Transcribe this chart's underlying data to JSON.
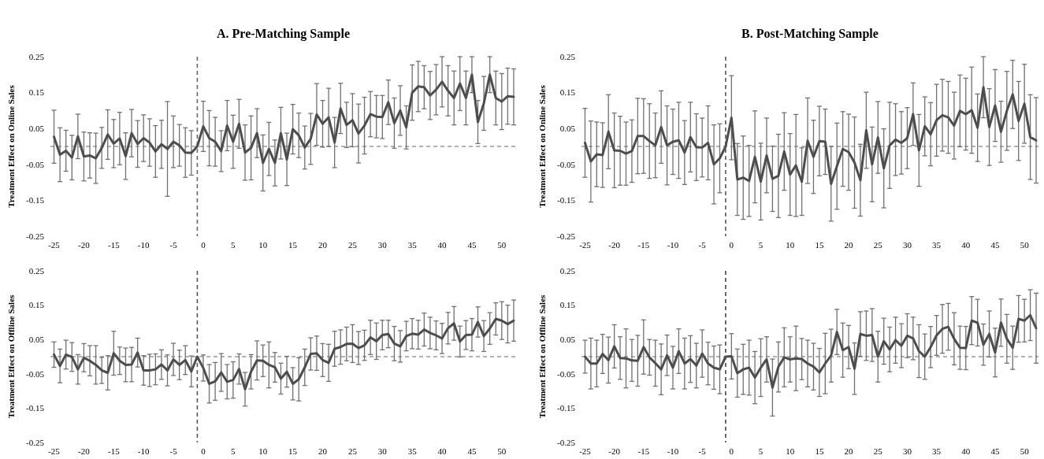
{
  "chart_data": [
    {
      "type": "line",
      "title": "A. Pre-Matching Sample",
      "ylabel": "Treatment Effect on Online Sales",
      "xlim": [
        -25.6,
        52.4
      ],
      "xticks": [
        -25,
        -20,
        -15,
        -10,
        -5,
        0,
        5,
        10,
        15,
        20,
        25,
        30,
        35,
        40,
        45,
        50
      ],
      "ylim": [
        -0.25,
        0.25
      ],
      "yticks": [
        -0.25,
        -0.15,
        -0.05,
        0.05,
        0.15,
        0.25
      ],
      "x": [
        -25,
        -24,
        -23,
        -22,
        -21,
        -20,
        -19,
        -18,
        -17,
        -16,
        -15,
        -14,
        -13,
        -12,
        -11,
        -10,
        -9,
        -8,
        -7,
        -6,
        -5,
        -4,
        -3,
        -2,
        -1,
        0,
        1,
        2,
        3,
        4,
        5,
        6,
        7,
        8,
        9,
        10,
        11,
        12,
        13,
        14,
        15,
        16,
        17,
        18,
        19,
        20,
        21,
        22,
        23,
        24,
        25,
        26,
        27,
        28,
        29,
        30,
        31,
        32,
        33,
        34,
        35,
        36,
        37,
        38,
        39,
        40,
        41,
        42,
        43,
        44,
        45,
        46,
        47,
        48,
        49,
        50,
        51,
        52
      ],
      "ref_lines": [
        {
          "axis": "x",
          "value": -1,
          "line_style": "dashed",
          "color": "#666666"
        },
        {
          "axis": "y",
          "value": 0,
          "line_style": "dashed",
          "color": "#666666"
        }
      ],
      "series": [
        {
          "color": "#4d4d4d",
          "values": [
            0.027,
            -0.023,
            -0.012,
            -0.031,
            0.028,
            -0.028,
            -0.025,
            -0.033,
            -0.004,
            0.033,
            0.008,
            0.022,
            -0.027,
            0.037,
            0.007,
            0.023,
            0.011,
            -0.014,
            0.006,
            -0.007,
            0.013,
            0.003,
            -0.017,
            -0.018,
            0,
            0.056,
            0.023,
            0.013,
            -0.013,
            0.058,
            0.013,
            0.063,
            -0.017,
            -0.004,
            0.037,
            -0.046,
            -0.007,
            -0.046,
            0.037,
            -0.036,
            0.048,
            0.031,
            -0.003,
            0.021,
            0.089,
            0.063,
            0.081,
            0.011,
            0.106,
            0.06,
            0.073,
            0.036,
            0.058,
            0.09,
            0.083,
            0.082,
            0.123,
            0.065,
            0.1,
            0.053,
            0.15,
            0.167,
            0.165,
            0.142,
            0.158,
            0.18,
            0.155,
            0.135,
            0.175,
            0.135,
            0.2,
            0.068,
            0.12,
            0.2,
            0.135,
            0.125,
            0.14,
            0.138
          ],
          "errors": [
            0.074,
            0.075,
            0.057,
            0.062,
            0.062,
            0.068,
            0.063,
            0.07,
            0.057,
            0.069,
            0.067,
            0.073,
            0.065,
            0.066,
            0.065,
            0.065,
            0.066,
            0.072,
            0.067,
            0.132,
            0.072,
            0.058,
            0.069,
            0.062,
            null,
            0.07,
            0.077,
            0.068,
            0.057,
            0.07,
            0.074,
            0.068,
            0.077,
            0.089,
            0.068,
            0.078,
            0.074,
            0.064,
            0.072,
            0.073,
            0.069,
            0.062,
            0.06,
            0.071,
            0.086,
            0.065,
            0.081,
            0.07,
            0.07,
            0.063,
            0.074,
            0.082,
            0.079,
            0.063,
            0.059,
            0.06,
            0.062,
            0.07,
            0.069,
            0.06,
            0.077,
            0.07,
            0.06,
            0.067,
            0.07,
            0.07,
            0.07,
            0.075,
            0.075,
            0.075,
            0.05,
            0.06,
            0.075,
            0.05,
            0.075,
            0.078,
            0.078,
            0.078
          ]
        }
      ]
    },
    {
      "type": "line",
      "title": "B. Post-Matching Sample",
      "ylabel": "Treatment Effect on Online Sales",
      "xlim": [
        -25.6,
        52.4
      ],
      "xticks": [
        -25,
        -20,
        -15,
        -10,
        -5,
        0,
        5,
        10,
        15,
        20,
        25,
        30,
        35,
        40,
        45,
        50
      ],
      "ylim": [
        -0.25,
        0.25
      ],
      "yticks": [
        -0.25,
        -0.15,
        -0.05,
        0.05,
        0.15,
        0.25
      ],
      "x": [
        -25,
        -24,
        -23,
        -22,
        -21,
        -20,
        -19,
        -18,
        -17,
        -16,
        -15,
        -14,
        -13,
        -12,
        -11,
        -10,
        -9,
        -8,
        -7,
        -6,
        -5,
        -4,
        -3,
        -2,
        -1,
        0,
        1,
        2,
        3,
        4,
        5,
        6,
        7,
        8,
        9,
        10,
        11,
        12,
        13,
        14,
        15,
        16,
        17,
        18,
        19,
        20,
        21,
        22,
        23,
        24,
        25,
        26,
        27,
        28,
        29,
        30,
        31,
        32,
        33,
        34,
        35,
        36,
        37,
        38,
        39,
        40,
        41,
        42,
        43,
        44,
        45,
        46,
        47,
        48,
        49,
        50,
        51,
        52
      ],
      "ref_lines": [
        {
          "axis": "x",
          "value": -1,
          "line_style": "dashed",
          "color": "#555555"
        },
        {
          "axis": "y",
          "value": 0,
          "line_style": "dashed",
          "color": "#666666"
        }
      ],
      "series": [
        {
          "color": "#4d4d4d",
          "values": [
            0.01,
            -0.042,
            -0.022,
            -0.024,
            0.041,
            -0.011,
            -0.012,
            -0.02,
            -0.013,
            0.029,
            0.029,
            0.015,
            0.003,
            0.054,
            0.003,
            0.013,
            0.017,
            -0.017,
            0.026,
            -0.002,
            -0.003,
            0.01,
            -0.05,
            -0.033,
            0,
            0.08,
            -0.092,
            -0.087,
            -0.096,
            -0.029,
            -0.098,
            -0.025,
            -0.09,
            -0.082,
            -0.014,
            -0.078,
            -0.053,
            -0.098,
            0.016,
            -0.029,
            0.015,
            0.013,
            -0.104,
            -0.055,
            -0.007,
            -0.016,
            -0.045,
            -0.094,
            0.045,
            -0.05,
            0.025,
            -0.061,
            0.003,
            0.019,
            0.01,
            0.023,
            0.09,
            -0.011,
            0.056,
            0.034,
            0.073,
            0.087,
            0.081,
            0.058,
            0.099,
            0.09,
            0.101,
            0.052,
            0.165,
            0.054,
            0.114,
            0.041,
            0.099,
            0.145,
            0.071,
            0.119,
            0.026,
            0.017
          ],
          "errors": [
            0.096,
            0.113,
            0.09,
            0.09,
            0.103,
            0.104,
            0.096,
            0.088,
            0.087,
            0.105,
            0.104,
            0.104,
            0.09,
            0.101,
            0.11,
            0.091,
            0.106,
            0.089,
            0.097,
            0.093,
            0.082,
            0.103,
            0.11,
            0.096,
            null,
            0.117,
            0.1,
            0.116,
            0.099,
            0.128,
            0.107,
            0.104,
            0.091,
            0.116,
            0.108,
            0.114,
            0.142,
            0.094,
            0.119,
            0.102,
            0.097,
            0.091,
            0.104,
            0.12,
            0.104,
            0.106,
            0.127,
            0.1,
            0.106,
            0.104,
            0.1,
            0.11,
            0.12,
            0.1,
            0.087,
            0.085,
            0.087,
            0.1,
            0.082,
            0.088,
            0.1,
            0.1,
            0.1,
            0.093,
            0.1,
            0.1,
            0.12,
            0.094,
            0.085,
            0.107,
            0.1,
            0.085,
            0.11,
            0.095,
            0.11,
            0.11,
            0.118,
            0.119
          ]
        }
      ]
    },
    {
      "type": "line",
      "ylabel": "Treatment Effect on Offline Sales",
      "xlim": [
        -25.6,
        52.4
      ],
      "xticks": [
        -25,
        -20,
        -15,
        -10,
        -5,
        0,
        5,
        10,
        15,
        20,
        25,
        30,
        35,
        40,
        45,
        50
      ],
      "ylim": [
        -0.25,
        0.25
      ],
      "yticks": [
        -0.25,
        -0.15,
        -0.05,
        0.05,
        0.15,
        0.25
      ],
      "x": [
        -25,
        -24,
        -23,
        -22,
        -21,
        -20,
        -19,
        -18,
        -17,
        -16,
        -15,
        -14,
        -13,
        -12,
        -11,
        -10,
        -9,
        -8,
        -7,
        -6,
        -5,
        -4,
        -3,
        -2,
        -1,
        0,
        1,
        2,
        3,
        4,
        5,
        6,
        7,
        8,
        9,
        10,
        11,
        12,
        13,
        14,
        15,
        16,
        17,
        18,
        19,
        20,
        21,
        22,
        23,
        24,
        25,
        26,
        27,
        28,
        29,
        30,
        31,
        32,
        33,
        34,
        35,
        36,
        37,
        38,
        39,
        40,
        41,
        42,
        43,
        44,
        45,
        46,
        47,
        48,
        49,
        50,
        51,
        52
      ],
      "ref_lines": [
        {
          "axis": "x",
          "value": -1,
          "line_style": "dashed",
          "color": "#555555"
        },
        {
          "axis": "y",
          "value": 0,
          "line_style": "dashed",
          "color": "#666666"
        }
      ],
      "series": [
        {
          "color": "#4d4d4d",
          "values": [
            0.006,
            -0.027,
            0.006,
            -0.001,
            -0.037,
            -0.003,
            -0.012,
            -0.024,
            -0.04,
            -0.047,
            0.01,
            -0.012,
            -0.024,
            -0.023,
            0.012,
            -0.04,
            -0.04,
            -0.037,
            -0.023,
            -0.04,
            -0.008,
            -0.024,
            -0.01,
            -0.043,
            0,
            -0.033,
            -0.079,
            -0.072,
            -0.046,
            -0.073,
            -0.068,
            -0.036,
            -0.095,
            -0.044,
            -0.011,
            -0.012,
            -0.024,
            -0.031,
            -0.064,
            -0.044,
            -0.079,
            -0.066,
            -0.031,
            0.008,
            0.01,
            -0.01,
            -0.018,
            0.023,
            0.028,
            0.037,
            0.038,
            0.025,
            0.033,
            0.056,
            0.045,
            0.063,
            0.066,
            0.038,
            0.03,
            0.06,
            0.067,
            0.064,
            0.079,
            0.069,
            0.062,
            0.053,
            0.083,
            0.097,
            0.044,
            0.063,
            0.064,
            0.101,
            0.06,
            0.082,
            0.11,
            0.105,
            0.095,
            0.105
          ],
          "errors": [
            0.037,
            0.049,
            0.042,
            0.042,
            0.043,
            0.041,
            0.044,
            0.056,
            0.038,
            0.05,
            0.064,
            0.04,
            0.049,
            0.05,
            0.042,
            0.043,
            0.047,
            0.045,
            0.043,
            0.045,
            0.047,
            0.043,
            0.042,
            0.045,
            null,
            0.038,
            0.056,
            0.055,
            0.055,
            0.05,
            0.053,
            0.044,
            0.049,
            0.05,
            0.057,
            0.046,
            0.067,
            0.043,
            0.045,
            0.045,
            0.047,
            0.063,
            0.053,
            0.047,
            0.05,
            0.048,
            0.054,
            0.051,
            0.05,
            0.049,
            0.055,
            0.048,
            0.044,
            0.05,
            0.053,
            0.043,
            0.04,
            0.05,
            0.046,
            0.043,
            0.044,
            0.042,
            0.048,
            0.046,
            0.042,
            0.044,
            0.046,
            0.049,
            0.045,
            0.042,
            0.047,
            0.044,
            0.045,
            0.046,
            0.047,
            0.055,
            0.055,
            0.06
          ]
        }
      ]
    },
    {
      "type": "line",
      "ylabel": "Treatment Effect on Offline Sales",
      "xlim": [
        -25.6,
        52.4
      ],
      "xticks": [
        -25,
        -20,
        -15,
        -10,
        -5,
        0,
        5,
        10,
        15,
        20,
        25,
        30,
        35,
        40,
        45,
        50
      ],
      "ylim": [
        -0.25,
        0.25
      ],
      "yticks": [
        -0.25,
        -0.15,
        -0.05,
        0.05,
        0.15,
        0.25
      ],
      "x": [
        -25,
        -24,
        -23,
        -22,
        -21,
        -20,
        -19,
        -18,
        -17,
        -16,
        -15,
        -14,
        -13,
        -12,
        -11,
        -10,
        -9,
        -8,
        -7,
        -6,
        -5,
        -4,
        -3,
        -2,
        -1,
        0,
        1,
        2,
        3,
        4,
        5,
        6,
        7,
        8,
        9,
        10,
        11,
        12,
        13,
        14,
        15,
        16,
        17,
        18,
        19,
        20,
        21,
        22,
        23,
        24,
        25,
        26,
        27,
        28,
        29,
        30,
        31,
        32,
        33,
        34,
        35,
        36,
        37,
        38,
        39,
        40,
        41,
        42,
        43,
        44,
        45,
        46,
        47,
        48,
        49,
        50,
        51,
        52
      ],
      "ref_lines": [
        {
          "axis": "x",
          "value": -1,
          "line_style": "dashed",
          "color": "#444444"
        },
        {
          "axis": "y",
          "value": 0,
          "line_style": "dashed",
          "color": "#666666"
        }
      ],
      "series": [
        {
          "color": "#4d4d4d",
          "values": [
            0,
            -0.02,
            -0.02,
            0.008,
            -0.01,
            0.03,
            -0.004,
            -0.005,
            -0.011,
            -0.012,
            0.028,
            -0.002,
            -0.019,
            -0.037,
            0.004,
            -0.032,
            0.016,
            -0.02,
            -0.007,
            -0.026,
            0.009,
            -0.02,
            -0.032,
            -0.037,
            0,
            0.001,
            -0.048,
            -0.037,
            -0.032,
            -0.061,
            -0.032,
            -0.008,
            -0.09,
            -0.03,
            -0.002,
            -0.008,
            -0.005,
            -0.007,
            -0.02,
            -0.029,
            -0.046,
            -0.02,
            0.003,
            0.072,
            0.019,
            0.028,
            -0.035,
            0.066,
            0.061,
            0.063,
            0,
            0.045,
            0.021,
            0.048,
            0.032,
            0.061,
            0.053,
            0.016,
            0,
            0.028,
            0.062,
            0.081,
            0.087,
            0.052,
            0.026,
            0.025,
            0.105,
            0.099,
            0.035,
            0.066,
            0.012,
            0.099,
            0.052,
            0.026,
            0.11,
            0.105,
            0.121,
            0.083
          ],
          "errors": [
            0.048,
            0.074,
            0.068,
            0.057,
            0.067,
            0.063,
            0.062,
            0.086,
            0.061,
            0.074,
            0.079,
            0.052,
            0.067,
            0.074,
            0.059,
            0.062,
            0.065,
            0.074,
            0.068,
            0.065,
            0.069,
            0.062,
            0.063,
            0.071,
            null,
            0.066,
            0.07,
            0.073,
            0.08,
            0.076,
            0.084,
            0.066,
            0.083,
            0.073,
            0.086,
            0.066,
            0.094,
            0.06,
            0.068,
            0.068,
            0.07,
            0.088,
            0.077,
            0.066,
            0.079,
            0.063,
            0.075,
            0.065,
            0.072,
            0.077,
            0.074,
            0.067,
            0.065,
            0.067,
            0.064,
            0.064,
            0.062,
            0.077,
            0.066,
            0.06,
            0.058,
            0.071,
            0.068,
            0.076,
            0.063,
            0.063,
            0.07,
            0.068,
            0.06,
            0.067,
            0.071,
            0.069,
            0.071,
            0.063,
            0.068,
            0.062,
            0.074,
            0.102
          ]
        }
      ]
    }
  ]
}
